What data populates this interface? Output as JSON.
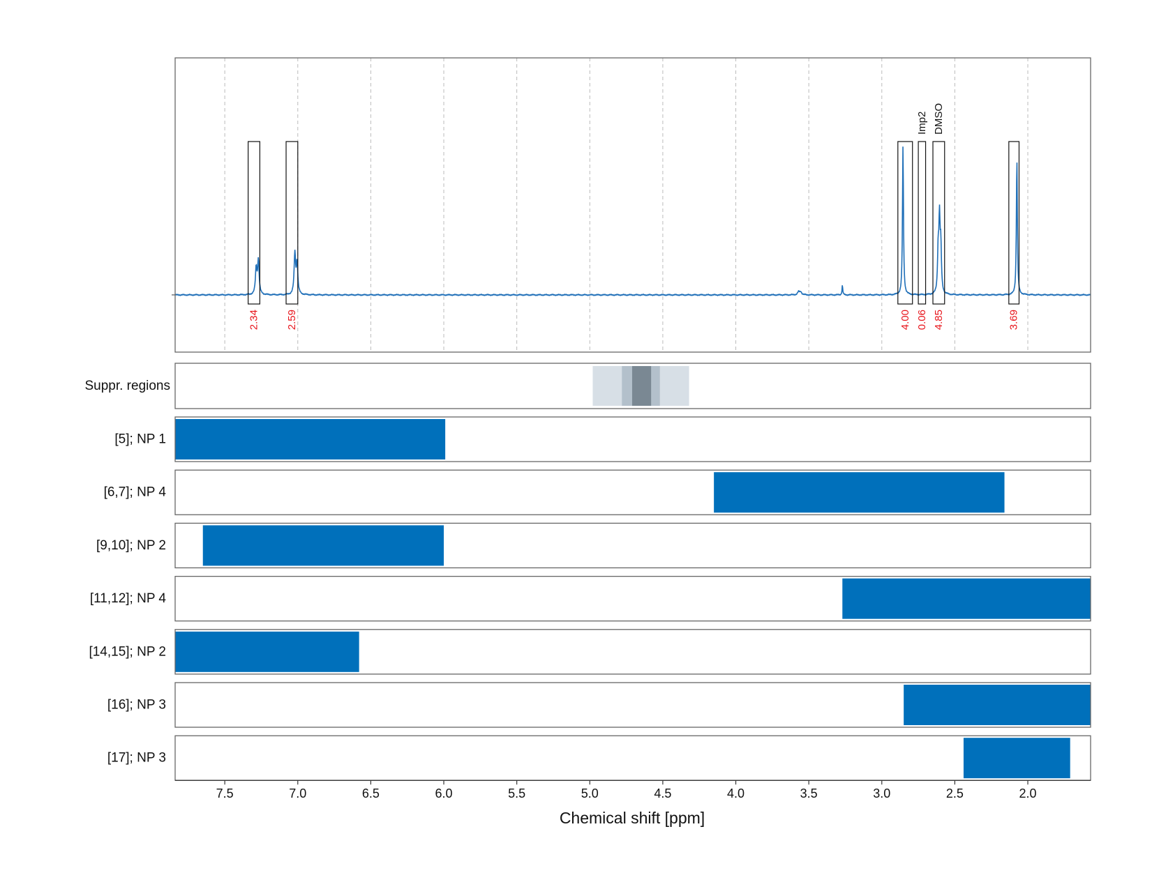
{
  "chart_data": {
    "type": "line",
    "xlabel": "Chemical shift [ppm]",
    "x_reversed": true,
    "xlim": [
      7.84,
      1.57
    ],
    "x_ticks": [
      7.5,
      7.0,
      6.5,
      6.0,
      5.5,
      5.0,
      4.5,
      4.0,
      3.5,
      3.0,
      2.5,
      2.0
    ],
    "x_tick_labels": [
      "7.5",
      "7.0",
      "6.5",
      "6.0",
      "5.5",
      "5.0",
      "4.5",
      "4.0",
      "3.5",
      "3.0",
      "2.5",
      "2.0"
    ],
    "grid": true,
    "spectrum": {
      "baseline": 0,
      "ylim": [
        -0.35,
        1.45
      ],
      "peaks": [
        {
          "x": 7.285,
          "y": 0.16,
          "w": 0.006
        },
        {
          "x": 7.27,
          "y": 0.21,
          "w": 0.006
        },
        {
          "x": 7.02,
          "y": 0.25,
          "w": 0.006
        },
        {
          "x": 7.005,
          "y": 0.19,
          "w": 0.006
        },
        {
          "x": 3.57,
          "y": 0.018,
          "w": 0.008
        },
        {
          "x": 3.555,
          "y": 0.018,
          "w": 0.008
        },
        {
          "x": 3.27,
          "y": 0.06,
          "w": 0.003
        },
        {
          "x": 2.855,
          "y": 0.91,
          "w": 0.004
        },
        {
          "x": 2.605,
          "y": 0.43,
          "w": 0.005
        },
        {
          "x": 2.596,
          "y": 0.27,
          "w": 0.005
        },
        {
          "x": 2.614,
          "y": 0.25,
          "w": 0.005
        },
        {
          "x": 2.075,
          "y": 0.84,
          "w": 0.004
        }
      ]
    },
    "integral_regions": [
      {
        "from": 7.34,
        "to": 7.26,
        "label": "2.34"
      },
      {
        "from": 7.08,
        "to": 7.0,
        "label": "2.59"
      },
      {
        "from": 2.89,
        "to": 2.79,
        "label": "4.00"
      },
      {
        "from": 2.75,
        "to": 2.7,
        "label": "0.06",
        "name": "Imp2"
      },
      {
        "from": 2.65,
        "to": 2.57,
        "label": "4.85",
        "name": "DMSO"
      },
      {
        "from": 2.13,
        "to": 2.06,
        "label": "3.69"
      }
    ],
    "suppression": {
      "label": "Suppr. regions",
      "bands": [
        {
          "from": 4.98,
          "to": 4.32,
          "shade": "#d7dfe6"
        },
        {
          "from": 4.78,
          "to": 4.52,
          "shade": "#b3c0cb"
        },
        {
          "from": 4.71,
          "to": 4.58,
          "shade": "#7a8893"
        }
      ]
    },
    "assignments": [
      {
        "label": "[5]; NP 1",
        "from": 7.84,
        "to": 5.99
      },
      {
        "label": "[6,7]; NP 4",
        "from": 4.15,
        "to": 2.16
      },
      {
        "label": "[9,10]; NP 2",
        "from": 7.65,
        "to": 6.0
      },
      {
        "label": "[11,12]; NP 4",
        "from": 3.27,
        "to": 1.57
      },
      {
        "label": "[14,15]; NP 2",
        "from": 7.84,
        "to": 6.58
      },
      {
        "label": "[16]; NP 3",
        "from": 2.85,
        "to": 1.57
      },
      {
        "label": "[17]; NP 3",
        "from": 2.44,
        "to": 1.71
      }
    ],
    "colors": {
      "spectrum": "#1f6fb8",
      "bar": "#0070bb",
      "integral_label": "#e8141b",
      "grid": "#bbbbbb",
      "frame": "#666666"
    }
  }
}
